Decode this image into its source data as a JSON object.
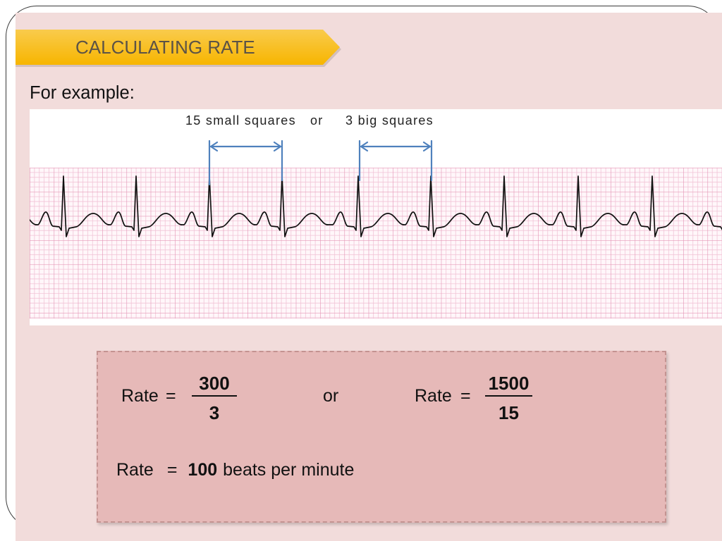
{
  "slide": {
    "title": "CALCULATING RATE",
    "intro": "For example:"
  },
  "ecg_strip": {
    "interval_small": "15 small squares",
    "connector": "or",
    "interval_big": "3 big squares"
  },
  "formula": {
    "rate_label": "Rate",
    "equals": "=",
    "method_1": {
      "numerator": "300",
      "denominator": "3"
    },
    "connector": "or",
    "method_2": {
      "numerator": "1500",
      "denominator": "15"
    },
    "result": {
      "label": "Rate",
      "equals": "=",
      "value": "100",
      "unit": "beats per minute"
    }
  },
  "colors": {
    "background": "#F2DCDB",
    "banner": "#F7B500",
    "box": "#E6B9B8",
    "arrow": "#4F81BD",
    "grid": "#E599B8",
    "trace": "#111111"
  }
}
